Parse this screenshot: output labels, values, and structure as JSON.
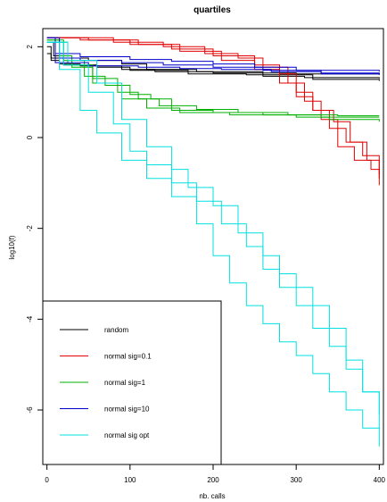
{
  "chart_data": {
    "type": "line",
    "title": "quartiles",
    "xlabel": "nb. calls",
    "ylabel": "log10(f)",
    "xlim": [
      -5,
      405
    ],
    "ylim": [
      -7.2,
      2.4
    ],
    "x_ticks": [
      0,
      100,
      200,
      300,
      400
    ],
    "y_ticks": [
      2,
      0,
      -2,
      -4,
      -6
    ],
    "grid": false,
    "legend_position": "bottom-left",
    "series": [
      {
        "name": "random",
        "color": "#000000",
        "curves": [
          [
            [
              0,
              1.85
            ],
            [
              5,
              1.7
            ],
            [
              15,
              1.62
            ],
            [
              40,
              1.58
            ],
            [
              90,
              1.5
            ],
            [
              130,
              1.45
            ],
            [
              200,
              1.42
            ],
            [
              300,
              1.4
            ],
            [
              400,
              1.38
            ]
          ],
          [
            [
              0,
              2.1
            ],
            [
              8,
              1.8
            ],
            [
              20,
              1.75
            ],
            [
              50,
              1.7
            ],
            [
              90,
              1.62
            ],
            [
              120,
              1.5
            ],
            [
              180,
              1.45
            ],
            [
              260,
              1.35
            ],
            [
              310,
              1.32
            ],
            [
              400,
              1.3
            ]
          ],
          [
            [
              0,
              2.0
            ],
            [
              5,
              1.75
            ],
            [
              20,
              1.6
            ],
            [
              60,
              1.55
            ],
            [
              100,
              1.48
            ],
            [
              170,
              1.4
            ],
            [
              240,
              1.38
            ],
            [
              320,
              1.28
            ],
            [
              400,
              1.25
            ]
          ]
        ]
      },
      {
        "name": "normal sig=0.1",
        "color": "#e00000",
        "curves": [
          [
            [
              0,
              2.2
            ],
            [
              40,
              2.15
            ],
            [
              100,
              2.05
            ],
            [
              150,
              1.95
            ],
            [
              200,
              1.8
            ],
            [
              250,
              1.6
            ],
            [
              280,
              1.4
            ],
            [
              300,
              1.0
            ],
            [
              320,
              0.6
            ],
            [
              340,
              0.2
            ],
            [
              360,
              -0.1
            ],
            [
              380,
              -0.4
            ],
            [
              400,
              -0.8
            ]
          ],
          [
            [
              0,
              2.2
            ],
            [
              30,
              2.2
            ],
            [
              80,
              2.1
            ],
            [
              140,
              2.0
            ],
            [
              190,
              1.85
            ],
            [
              230,
              1.75
            ],
            [
              260,
              1.55
            ],
            [
              290,
              1.2
            ],
            [
              310,
              0.8
            ],
            [
              330,
              0.4
            ],
            [
              350,
              -0.2
            ],
            [
              370,
              -0.5
            ],
            [
              390,
              -0.7
            ],
            [
              400,
              -1.05
            ]
          ],
          [
            [
              0,
              2.2
            ],
            [
              50,
              2.15
            ],
            [
              110,
              2.05
            ],
            [
              160,
              1.9
            ],
            [
              210,
              1.7
            ],
            [
              250,
              1.5
            ],
            [
              280,
              1.2
            ],
            [
              300,
              0.9
            ],
            [
              320,
              0.6
            ],
            [
              345,
              0.35
            ],
            [
              365,
              -0.1
            ],
            [
              385,
              -0.5
            ],
            [
              400,
              -0.9
            ]
          ]
        ]
      },
      {
        "name": "normal sig=1",
        "color": "#00b000",
        "curves": [
          [
            [
              0,
              2.15
            ],
            [
              15,
              1.8
            ],
            [
              30,
              1.55
            ],
            [
              55,
              1.3
            ],
            [
              85,
              1.0
            ],
            [
              110,
              0.85
            ],
            [
              135,
              0.7
            ],
            [
              150,
              0.6
            ],
            [
              200,
              0.55
            ],
            [
              260,
              0.5
            ],
            [
              330,
              0.45
            ],
            [
              400,
              0.45
            ]
          ],
          [
            [
              0,
              2.15
            ],
            [
              20,
              1.7
            ],
            [
              45,
              1.35
            ],
            [
              70,
              1.15
            ],
            [
              100,
              0.95
            ],
            [
              125,
              0.85
            ],
            [
              150,
              0.7
            ],
            [
              180,
              0.62
            ],
            [
              230,
              0.55
            ],
            [
              290,
              0.5
            ],
            [
              350,
              0.48
            ],
            [
              400,
              0.48
            ]
          ],
          [
            [
              0,
              2.1
            ],
            [
              25,
              1.6
            ],
            [
              55,
              1.2
            ],
            [
              90,
              0.85
            ],
            [
              120,
              0.65
            ],
            [
              160,
              0.55
            ],
            [
              220,
              0.5
            ],
            [
              300,
              0.45
            ],
            [
              340,
              0.4
            ],
            [
              400,
              0.35
            ]
          ]
        ]
      },
      {
        "name": "normal sig=10",
        "color": "#0000cc",
        "curves": [
          [
            [
              0,
              2.2
            ],
            [
              10,
              1.85
            ],
            [
              40,
              1.78
            ],
            [
              100,
              1.72
            ],
            [
              150,
              1.68
            ],
            [
              200,
              1.62
            ],
            [
              250,
              1.55
            ],
            [
              300,
              1.48
            ],
            [
              400,
              1.45
            ]
          ],
          [
            [
              0,
              2.2
            ],
            [
              15,
              1.75
            ],
            [
              40,
              1.7
            ],
            [
              90,
              1.65
            ],
            [
              140,
              1.6
            ],
            [
              200,
              1.55
            ],
            [
              260,
              1.48
            ],
            [
              330,
              1.42
            ],
            [
              400,
              1.4
            ]
          ],
          [
            [
              0,
              2.1
            ],
            [
              10,
              1.65
            ],
            [
              50,
              1.58
            ],
            [
              110,
              1.55
            ],
            [
              160,
              1.52
            ],
            [
              210,
              1.5
            ],
            [
              270,
              1.45
            ],
            [
              330,
              1.4
            ],
            [
              400,
              1.38
            ]
          ]
        ]
      },
      {
        "name": "normal sig opt",
        "color": "#00e0e0",
        "curves": [
          [
            [
              0,
              2.1
            ],
            [
              20,
              1.6
            ],
            [
              50,
              1.0
            ],
            [
              80,
              0.3
            ],
            [
              100,
              -0.3
            ],
            [
              120,
              -0.6
            ],
            [
              150,
              -1.0
            ],
            [
              180,
              -1.4
            ],
            [
              210,
              -1.9
            ],
            [
              240,
              -2.4
            ],
            [
              260,
              -2.9
            ],
            [
              280,
              -3.3
            ],
            [
              300,
              -3.7
            ],
            [
              320,
              -4.2
            ],
            [
              340,
              -4.6
            ],
            [
              360,
              -5.1
            ],
            [
              380,
              -5.6
            ],
            [
              400,
              -6.1
            ]
          ],
          [
            [
              0,
              2.1
            ],
            [
              15,
              1.5
            ],
            [
              40,
              0.6
            ],
            [
              60,
              0.1
            ],
            [
              90,
              -0.5
            ],
            [
              120,
              -0.9
            ],
            [
              150,
              -1.3
            ],
            [
              180,
              -1.9
            ],
            [
              200,
              -2.6
            ],
            [
              220,
              -3.2
            ],
            [
              240,
              -3.7
            ],
            [
              260,
              -4.1
            ],
            [
              280,
              -4.5
            ],
            [
              300,
              -4.8
            ],
            [
              320,
              -5.2
            ],
            [
              340,
              -5.6
            ],
            [
              360,
              -6.0
            ],
            [
              380,
              -6.4
            ],
            [
              400,
              -6.8
            ]
          ],
          [
            [
              0,
              2.1
            ],
            [
              25,
              1.7
            ],
            [
              60,
              1.2
            ],
            [
              90,
              0.4
            ],
            [
              120,
              -0.2
            ],
            [
              150,
              -0.7
            ],
            [
              170,
              -1.1
            ],
            [
              200,
              -1.5
            ],
            [
              230,
              -2.1
            ],
            [
              260,
              -2.6
            ],
            [
              280,
              -3.0
            ],
            [
              300,
              -3.3
            ],
            [
              320,
              -3.7
            ],
            [
              340,
              -4.2
            ],
            [
              360,
              -4.9
            ],
            [
              380,
              -5.6
            ],
            [
              400,
              -6.4
            ]
          ]
        ]
      }
    ]
  }
}
